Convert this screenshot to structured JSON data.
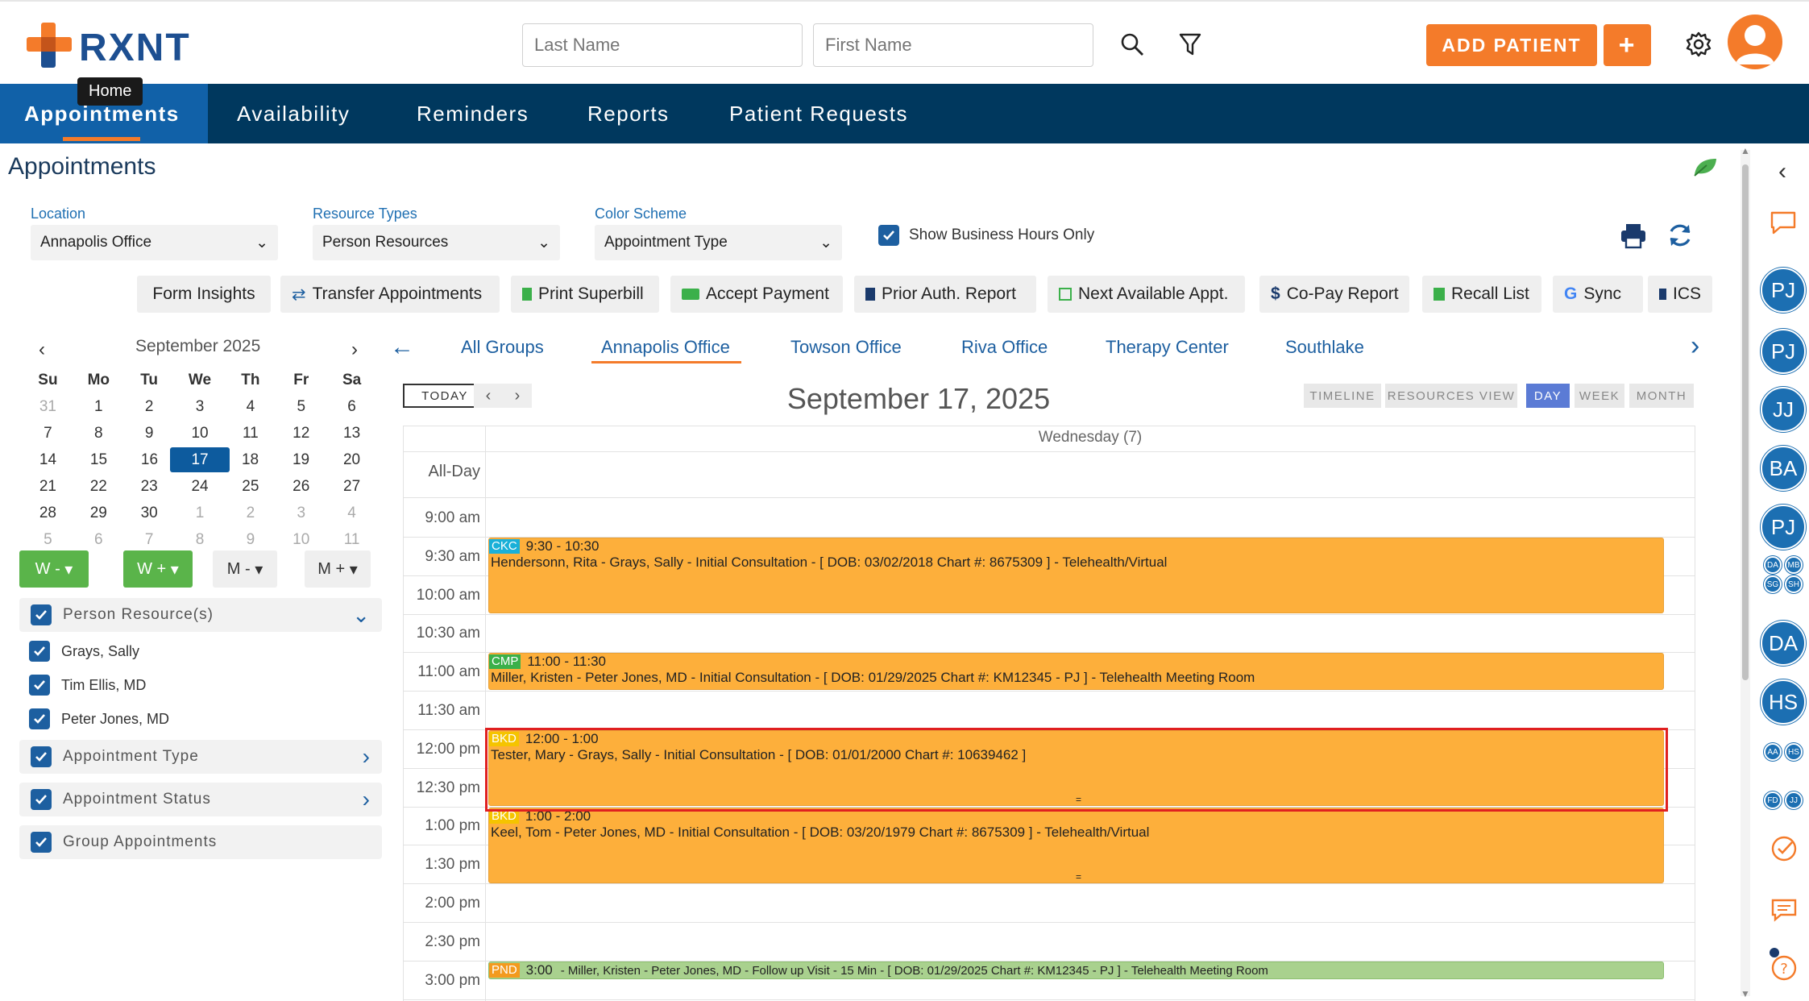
{
  "brand": {
    "name": "RXNT"
  },
  "search": {
    "last_name_placeholder": "Last Name",
    "first_name_placeholder": "First Name"
  },
  "header": {
    "add_patient_label": "ADD PATIENT",
    "plus_label": "+"
  },
  "nav": {
    "tooltip": "Home",
    "items": [
      "Appointments",
      "Availability",
      "Reminders",
      "Reports",
      "Patient Requests"
    ]
  },
  "page": {
    "title": "Appointments"
  },
  "filters": {
    "location_label": "Location",
    "location_value": "Annapolis Office",
    "resource_label": "Resource Types",
    "resource_value": "Person Resources",
    "color_label": "Color Scheme",
    "color_value": "Appointment Type",
    "business_hours_label": "Show Business Hours Only"
  },
  "toolbar": [
    "Form Insights",
    "Transfer Appointments",
    "Print Superbill",
    "Accept Payment",
    "Prior Auth. Report",
    "Next Available Appt.",
    "Co-Pay Report",
    "Recall List",
    "Sync",
    "ICS"
  ],
  "mini_cal": {
    "month": "September 2025",
    "days": [
      "Su",
      "Mo",
      "Tu",
      "We",
      "Th",
      "Fr",
      "Sa"
    ],
    "weeks": [
      [
        "31",
        "1",
        "2",
        "3",
        "4",
        "5",
        "6"
      ],
      [
        "7",
        "8",
        "9",
        "10",
        "11",
        "12",
        "13"
      ],
      [
        "14",
        "15",
        "16",
        "17",
        "18",
        "19",
        "20"
      ],
      [
        "21",
        "22",
        "23",
        "24",
        "25",
        "26",
        "27"
      ],
      [
        "28",
        "29",
        "30",
        "1",
        "2",
        "3",
        "4"
      ],
      [
        "5",
        "6",
        "7",
        "8",
        "9",
        "10",
        "11"
      ]
    ],
    "selected": "17"
  },
  "week_buttons": [
    "W -",
    "W +",
    "M -",
    "M +"
  ],
  "sidebar": {
    "person_resources_label": "Person Resource(s)",
    "resources": [
      "Grays, Sally",
      "Tim Ellis, MD",
      "Peter Jones, MD"
    ],
    "appointment_type_label": "Appointment Type",
    "appointment_status_label": "Appointment Status",
    "group_appointments_label": "Group Appointments"
  },
  "groups": [
    "All Groups",
    "Annapolis Office",
    "Towson Office",
    "Riva Office",
    "Therapy Center",
    "Southlake"
  ],
  "active_group": "Annapolis Office",
  "schedule": {
    "today_label": "TODAY",
    "date_title": "September 17, 2025",
    "views": [
      "TIMELINE",
      "RESOURCES VIEW",
      "DAY",
      "WEEK",
      "MONTH"
    ],
    "active_view": "DAY",
    "day_header": "Wednesday (7)",
    "allday_label": "All-Day",
    "times": [
      "9:00 am",
      "9:30 am",
      "10:00 am",
      "10:30 am",
      "11:00 am",
      "11:30 am",
      "12:00 pm",
      "12:30 pm",
      "1:00 pm",
      "1:30 pm",
      "2:00 pm",
      "2:30 pm",
      "3:00 pm"
    ],
    "appointments": [
      {
        "tag": "CKC",
        "tag_color": "#1ab0d8",
        "time": "9:30 - 10:30",
        "text": "Hendersonn, Rita - Grays, Sally - Initial Consultation - [ DOB: 03/02/2018 Chart #: 8675309 ] - Telehealth/Virtual"
      },
      {
        "tag": "CMP",
        "tag_color": "#3bb04a",
        "time": "11:00 - 11:30",
        "text": "Miller, Kristen - Peter Jones, MD - Initial Consultation - [ DOB: 01/29/2025 Chart #: KM12345 - PJ ] - Telehealth Meeting Room"
      },
      {
        "tag": "BKD",
        "tag_color": "#f5c400",
        "time": "12:00 - 1:00",
        "text": "Tester, Mary - Grays, Sally - Initial Consultation - [ DOB: 01/01/2000 Chart #: 10639462 ]"
      },
      {
        "tag": "BKD",
        "tag_color": "#f5c400",
        "time": "1:00 - 2:00",
        "text": "Keel, Tom - Peter Jones, MD - Initial Consultation - [ DOB: 03/20/1979 Chart #: 8675309 ] - Telehealth/Virtual"
      },
      {
        "tag": "PND",
        "tag_color": "#f39a1e",
        "time": "3:00",
        "text": "- Miller, Kristen - Peter Jones, MD - Follow up Visit - 15 Min - [ DOB: 01/29/2025 Chart #: KM12345 - PJ ] - Telehealth Meeting Room"
      }
    ]
  },
  "rail": {
    "avatars_large": [
      "PJ",
      "PJ",
      "JJ",
      "BA",
      "PJ",
      "DA",
      "HS"
    ],
    "avatars_small": [
      "DA",
      "MB",
      "SG",
      "SH",
      "AA",
      "HS",
      "FD",
      "JJ"
    ]
  }
}
